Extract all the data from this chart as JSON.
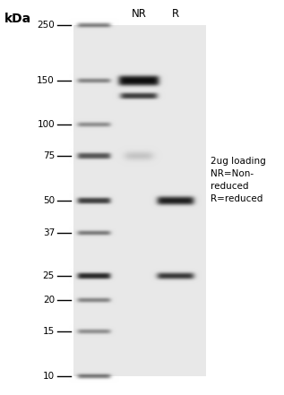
{
  "fig_width": 3.17,
  "fig_height": 4.41,
  "dpi": 100,
  "kda_label": "kDa",
  "col_NR": "NR",
  "col_R": "R",
  "annotation_text": "2ug loading\nNR=Non-\nreduced\nR=reduced",
  "marker_kda": [
    250,
    150,
    100,
    75,
    50,
    37,
    25,
    20,
    15,
    10
  ],
  "annotation_fontsize": 7.5,
  "label_fontsize": 8.5,
  "marker_fontsize": 7.5,
  "kda_fontsize": 10
}
